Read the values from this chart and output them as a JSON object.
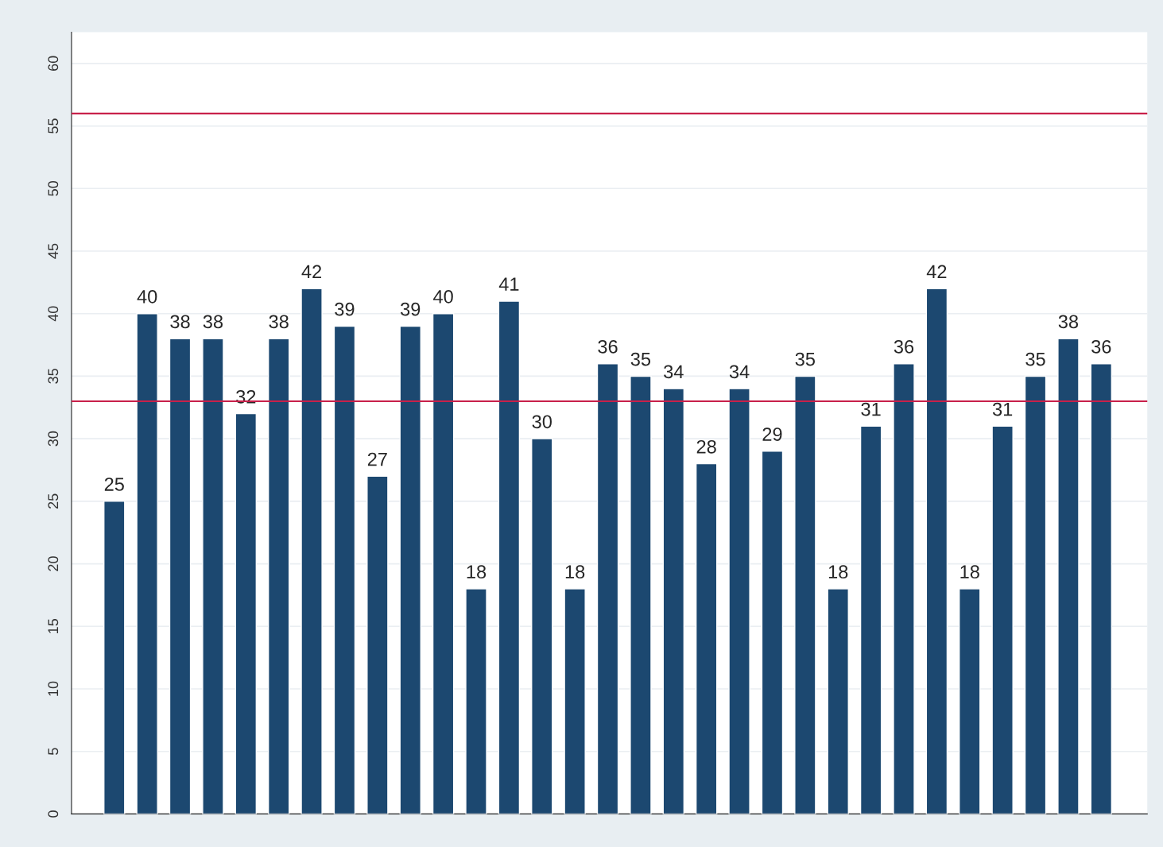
{
  "chart_data": {
    "type": "bar",
    "categories": [
      null,
      null,
      null,
      null,
      null,
      null,
      null,
      null,
      null,
      null,
      null,
      null,
      null,
      null,
      null,
      null,
      null,
      null,
      null,
      null,
      null,
      null,
      null,
      null,
      null,
      null,
      null,
      null,
      null,
      null,
      null
    ],
    "values": [
      25,
      40,
      38,
      38,
      32,
      38,
      42,
      39,
      27,
      39,
      40,
      18,
      41,
      30,
      18,
      36,
      35,
      34,
      28,
      34,
      29,
      35,
      18,
      31,
      36,
      42,
      18,
      31,
      35,
      38,
      36
    ],
    "color": "#1c4870",
    "ylim": [
      0,
      62.5
    ],
    "yticks": [
      0,
      5,
      10,
      15,
      20,
      25,
      30,
      35,
      40,
      45,
      50,
      55,
      60
    ],
    "grid": "y",
    "data_labels": true,
    "tick_labels": "y",
    "ref_lines": [
      {
        "axis": "y",
        "value": 56,
        "color": "#c8204a"
      },
      {
        "axis": "y",
        "value": 33,
        "color": "#c8204a"
      }
    ]
  }
}
